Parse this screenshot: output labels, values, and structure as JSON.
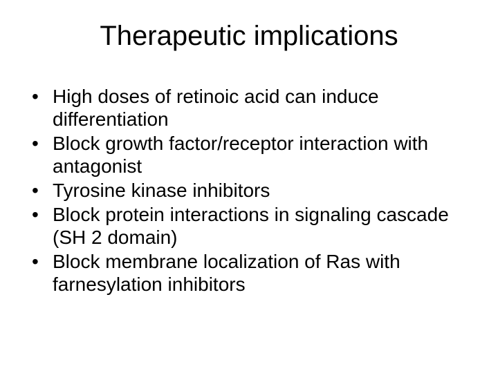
{
  "slide": {
    "title": "Therapeutic implications",
    "title_fontsize": 40,
    "title_color": "#000000",
    "body_fontsize": 28,
    "body_color": "#000000",
    "background_color": "#ffffff",
    "font_family": "Arial",
    "bullets": [
      "High doses of retinoic acid can induce differentiation",
      "Block growth factor/receptor interaction with antagonist",
      "Tyrosine kinase inhibitors",
      "Block protein interactions in signaling cascade (SH 2 domain)",
      "Block membrane localization of Ras with farnesylation inhibitors"
    ]
  }
}
